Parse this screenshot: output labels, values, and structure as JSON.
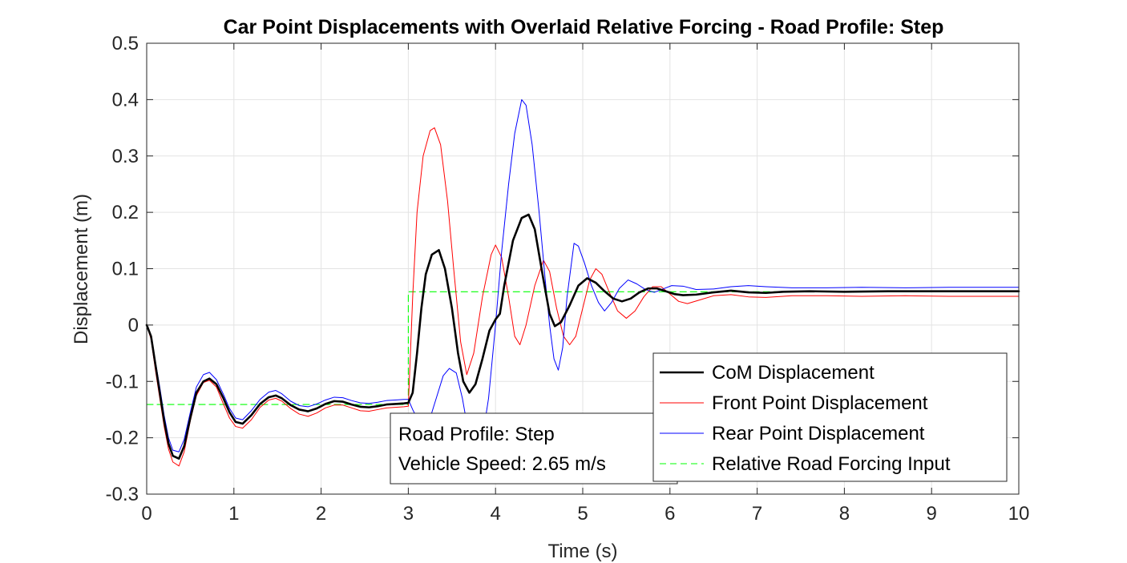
{
  "chart_data": {
    "type": "line",
    "title": "Car Point Displacements with Overlaid Relative Forcing - Road Profile: Step",
    "xlabel": "Time (s)",
    "ylabel": "Displacement (m)",
    "xlim": [
      0,
      10
    ],
    "ylim": [
      -0.3,
      0.5
    ],
    "xticks": [
      0,
      1,
      2,
      3,
      4,
      5,
      6,
      7,
      8,
      9,
      10
    ],
    "yticks": [
      -0.3,
      -0.2,
      -0.1,
      0,
      0.1,
      0.2,
      0.3,
      0.4,
      0.5
    ],
    "xtick_labels": [
      "0",
      "1",
      "2",
      "3",
      "4",
      "5",
      "6",
      "7",
      "8",
      "9",
      "10"
    ],
    "ytick_labels": [
      "-0.3",
      "-0.2",
      "-0.1",
      "0",
      "0.1",
      "0.2",
      "0.3",
      "0.4",
      "0.5"
    ],
    "grid": true,
    "legend_position": "bottom-right",
    "series": [
      {
        "name": "CoM Displacement",
        "color": "#000000",
        "style": "solid-thick",
        "points": [
          [
            0,
            0
          ],
          [
            0.05,
            -0.02
          ],
          [
            0.1,
            -0.07
          ],
          [
            0.15,
            -0.12
          ],
          [
            0.2,
            -0.17
          ],
          [
            0.25,
            -0.21
          ],
          [
            0.3,
            -0.232
          ],
          [
            0.37,
            -0.237
          ],
          [
            0.43,
            -0.215
          ],
          [
            0.5,
            -0.165
          ],
          [
            0.57,
            -0.12
          ],
          [
            0.65,
            -0.1
          ],
          [
            0.72,
            -0.095
          ],
          [
            0.8,
            -0.105
          ],
          [
            0.88,
            -0.13
          ],
          [
            0.95,
            -0.155
          ],
          [
            1.02,
            -0.172
          ],
          [
            1.1,
            -0.175
          ],
          [
            1.2,
            -0.16
          ],
          [
            1.3,
            -0.14
          ],
          [
            1.4,
            -0.128
          ],
          [
            1.48,
            -0.125
          ],
          [
            1.55,
            -0.13
          ],
          [
            1.65,
            -0.142
          ],
          [
            1.75,
            -0.15
          ],
          [
            1.85,
            -0.153
          ],
          [
            1.95,
            -0.148
          ],
          [
            2.05,
            -0.14
          ],
          [
            2.15,
            -0.135
          ],
          [
            2.25,
            -0.136
          ],
          [
            2.35,
            -0.141
          ],
          [
            2.45,
            -0.145
          ],
          [
            2.55,
            -0.146
          ],
          [
            2.65,
            -0.144
          ],
          [
            2.75,
            -0.141
          ],
          [
            2.85,
            -0.14
          ],
          [
            2.95,
            -0.139
          ],
          [
            3.0,
            -0.138
          ],
          [
            3.05,
            -0.12
          ],
          [
            3.1,
            -0.05
          ],
          [
            3.15,
            0.03
          ],
          [
            3.2,
            0.09
          ],
          [
            3.27,
            0.125
          ],
          [
            3.35,
            0.133
          ],
          [
            3.42,
            0.1
          ],
          [
            3.5,
            0.03
          ],
          [
            3.57,
            -0.05
          ],
          [
            3.63,
            -0.1
          ],
          [
            3.7,
            -0.12
          ],
          [
            3.77,
            -0.105
          ],
          [
            3.85,
            -0.06
          ],
          [
            3.93,
            -0.01
          ],
          [
            4.0,
            0.01
          ],
          [
            4.05,
            0.02
          ],
          [
            4.1,
            0.07
          ],
          [
            4.2,
            0.15
          ],
          [
            4.3,
            0.19
          ],
          [
            4.38,
            0.196
          ],
          [
            4.45,
            0.17
          ],
          [
            4.55,
            0.08
          ],
          [
            4.62,
            0.02
          ],
          [
            4.68,
            -0.002
          ],
          [
            4.75,
            0.005
          ],
          [
            4.85,
            0.035
          ],
          [
            4.95,
            0.07
          ],
          [
            5.05,
            0.083
          ],
          [
            5.15,
            0.075
          ],
          [
            5.25,
            0.06
          ],
          [
            5.35,
            0.047
          ],
          [
            5.45,
            0.042
          ],
          [
            5.55,
            0.047
          ],
          [
            5.65,
            0.058
          ],
          [
            5.75,
            0.065
          ],
          [
            5.85,
            0.065
          ],
          [
            5.95,
            0.06
          ],
          [
            6.05,
            0.055
          ],
          [
            6.15,
            0.053
          ],
          [
            6.3,
            0.054
          ],
          [
            6.5,
            0.058
          ],
          [
            6.7,
            0.061
          ],
          [
            6.9,
            0.058
          ],
          [
            7.1,
            0.057
          ],
          [
            7.3,
            0.059
          ],
          [
            7.6,
            0.06
          ],
          [
            8.0,
            0.059
          ],
          [
            8.5,
            0.06
          ],
          [
            9.0,
            0.06
          ],
          [
            9.5,
            0.06
          ],
          [
            10.0,
            0.06
          ]
        ]
      },
      {
        "name": "Front Point Displacement",
        "color": "#ff0000",
        "style": "solid-thin",
        "points": [
          [
            0,
            0
          ],
          [
            0.05,
            -0.025
          ],
          [
            0.1,
            -0.08
          ],
          [
            0.15,
            -0.13
          ],
          [
            0.2,
            -0.18
          ],
          [
            0.25,
            -0.22
          ],
          [
            0.3,
            -0.243
          ],
          [
            0.37,
            -0.25
          ],
          [
            0.43,
            -0.225
          ],
          [
            0.5,
            -0.17
          ],
          [
            0.57,
            -0.125
          ],
          [
            0.65,
            -0.102
          ],
          [
            0.72,
            -0.098
          ],
          [
            0.8,
            -0.11
          ],
          [
            0.88,
            -0.14
          ],
          [
            0.95,
            -0.165
          ],
          [
            1.02,
            -0.18
          ],
          [
            1.1,
            -0.183
          ],
          [
            1.2,
            -0.168
          ],
          [
            1.3,
            -0.146
          ],
          [
            1.4,
            -0.133
          ],
          [
            1.48,
            -0.13
          ],
          [
            1.55,
            -0.135
          ],
          [
            1.65,
            -0.148
          ],
          [
            1.75,
            -0.158
          ],
          [
            1.85,
            -0.162
          ],
          [
            1.95,
            -0.156
          ],
          [
            2.05,
            -0.147
          ],
          [
            2.15,
            -0.142
          ],
          [
            2.25,
            -0.142
          ],
          [
            2.35,
            -0.147
          ],
          [
            2.45,
            -0.152
          ],
          [
            2.55,
            -0.153
          ],
          [
            2.65,
            -0.15
          ],
          [
            2.75,
            -0.147
          ],
          [
            2.85,
            -0.146
          ],
          [
            2.95,
            -0.145
          ],
          [
            3.0,
            -0.144
          ],
          [
            3.05,
            0.05
          ],
          [
            3.1,
            0.2
          ],
          [
            3.17,
            0.3
          ],
          [
            3.25,
            0.345
          ],
          [
            3.3,
            0.35
          ],
          [
            3.37,
            0.32
          ],
          [
            3.45,
            0.22
          ],
          [
            3.52,
            0.1
          ],
          [
            3.6,
            -0.03
          ],
          [
            3.67,
            -0.088
          ],
          [
            3.75,
            -0.05
          ],
          [
            3.85,
            0.05
          ],
          [
            3.95,
            0.125
          ],
          [
            4.0,
            0.142
          ],
          [
            4.07,
            0.12
          ],
          [
            4.15,
            0.05
          ],
          [
            4.22,
            -0.02
          ],
          [
            4.28,
            -0.035
          ],
          [
            4.35,
            0.0
          ],
          [
            4.45,
            0.07
          ],
          [
            4.55,
            0.115
          ],
          [
            4.62,
            0.095
          ],
          [
            4.7,
            0.03
          ],
          [
            4.78,
            -0.02
          ],
          [
            4.85,
            -0.035
          ],
          [
            4.92,
            -0.02
          ],
          [
            5.0,
            0.03
          ],
          [
            5.08,
            0.08
          ],
          [
            5.15,
            0.1
          ],
          [
            5.22,
            0.09
          ],
          [
            5.3,
            0.06
          ],
          [
            5.4,
            0.025
          ],
          [
            5.5,
            0.012
          ],
          [
            5.6,
            0.025
          ],
          [
            5.7,
            0.05
          ],
          [
            5.8,
            0.068
          ],
          [
            5.9,
            0.068
          ],
          [
            6.0,
            0.055
          ],
          [
            6.1,
            0.042
          ],
          [
            6.2,
            0.038
          ],
          [
            6.35,
            0.045
          ],
          [
            6.5,
            0.052
          ],
          [
            6.7,
            0.054
          ],
          [
            6.9,
            0.05
          ],
          [
            7.1,
            0.049
          ],
          [
            7.4,
            0.052
          ],
          [
            7.8,
            0.052
          ],
          [
            8.2,
            0.051
          ],
          [
            8.7,
            0.052
          ],
          [
            9.2,
            0.051
          ],
          [
            9.7,
            0.051
          ],
          [
            10.0,
            0.051
          ]
        ]
      },
      {
        "name": "Rear Point Displacement",
        "color": "#0000ff",
        "style": "solid-thin",
        "points": [
          [
            0,
            0
          ],
          [
            0.05,
            -0.018
          ],
          [
            0.1,
            -0.065
          ],
          [
            0.15,
            -0.11
          ],
          [
            0.2,
            -0.16
          ],
          [
            0.25,
            -0.2
          ],
          [
            0.3,
            -0.222
          ],
          [
            0.37,
            -0.225
          ],
          [
            0.43,
            -0.203
          ],
          [
            0.5,
            -0.155
          ],
          [
            0.57,
            -0.11
          ],
          [
            0.65,
            -0.088
          ],
          [
            0.72,
            -0.084
          ],
          [
            0.8,
            -0.097
          ],
          [
            0.88,
            -0.123
          ],
          [
            0.95,
            -0.148
          ],
          [
            1.02,
            -0.165
          ],
          [
            1.1,
            -0.168
          ],
          [
            1.2,
            -0.152
          ],
          [
            1.3,
            -0.132
          ],
          [
            1.4,
            -0.119
          ],
          [
            1.48,
            -0.116
          ],
          [
            1.55,
            -0.122
          ],
          [
            1.65,
            -0.135
          ],
          [
            1.75,
            -0.143
          ],
          [
            1.85,
            -0.145
          ],
          [
            1.95,
            -0.14
          ],
          [
            2.05,
            -0.133
          ],
          [
            2.15,
            -0.128
          ],
          [
            2.25,
            -0.129
          ],
          [
            2.35,
            -0.134
          ],
          [
            2.45,
            -0.138
          ],
          [
            2.55,
            -0.139
          ],
          [
            2.65,
            -0.137
          ],
          [
            2.75,
            -0.134
          ],
          [
            2.85,
            -0.133
          ],
          [
            2.95,
            -0.132
          ],
          [
            3.0,
            -0.132
          ],
          [
            3.05,
            -0.15
          ],
          [
            3.1,
            -0.165
          ],
          [
            3.17,
            -0.175
          ],
          [
            3.25,
            -0.165
          ],
          [
            3.32,
            -0.13
          ],
          [
            3.4,
            -0.09
          ],
          [
            3.47,
            -0.077
          ],
          [
            3.55,
            -0.085
          ],
          [
            3.62,
            -0.13
          ],
          [
            3.7,
            -0.2
          ],
          [
            3.77,
            -0.225
          ],
          [
            3.85,
            -0.2
          ],
          [
            3.92,
            -0.13
          ],
          [
            4.0,
            0.0
          ],
          [
            4.07,
            0.13
          ],
          [
            4.15,
            0.25
          ],
          [
            4.22,
            0.34
          ],
          [
            4.3,
            0.4
          ],
          [
            4.35,
            0.39
          ],
          [
            4.42,
            0.32
          ],
          [
            4.5,
            0.2
          ],
          [
            4.57,
            0.08
          ],
          [
            4.62,
            0.0
          ],
          [
            4.67,
            -0.06
          ],
          [
            4.72,
            -0.08
          ],
          [
            4.77,
            -0.04
          ],
          [
            4.82,
            0.05
          ],
          [
            4.9,
            0.145
          ],
          [
            4.95,
            0.14
          ],
          [
            5.02,
            0.11
          ],
          [
            5.1,
            0.07
          ],
          [
            5.18,
            0.04
          ],
          [
            5.25,
            0.025
          ],
          [
            5.33,
            0.04
          ],
          [
            5.42,
            0.065
          ],
          [
            5.52,
            0.08
          ],
          [
            5.62,
            0.073
          ],
          [
            5.72,
            0.063
          ],
          [
            5.82,
            0.058
          ],
          [
            5.92,
            0.064
          ],
          [
            6.02,
            0.07
          ],
          [
            6.15,
            0.069
          ],
          [
            6.3,
            0.063
          ],
          [
            6.5,
            0.064
          ],
          [
            6.7,
            0.068
          ],
          [
            6.9,
            0.07
          ],
          [
            7.1,
            0.068
          ],
          [
            7.4,
            0.066
          ],
          [
            7.8,
            0.066
          ],
          [
            8.2,
            0.067
          ],
          [
            8.7,
            0.066
          ],
          [
            9.2,
            0.067
          ],
          [
            9.7,
            0.067
          ],
          [
            10.0,
            0.067
          ]
        ]
      },
      {
        "name": "Relative Road Forcing Input",
        "color": "#00ff00",
        "style": "dashed",
        "points": [
          [
            0,
            -0.141
          ],
          [
            3.0,
            -0.141
          ],
          [
            3.0,
            0.059
          ],
          [
            10.0,
            0.059
          ]
        ]
      }
    ],
    "annotation": {
      "lines": [
        "Road Profile: Step",
        "Vehicle Speed: 2.65 m/s"
      ]
    }
  }
}
